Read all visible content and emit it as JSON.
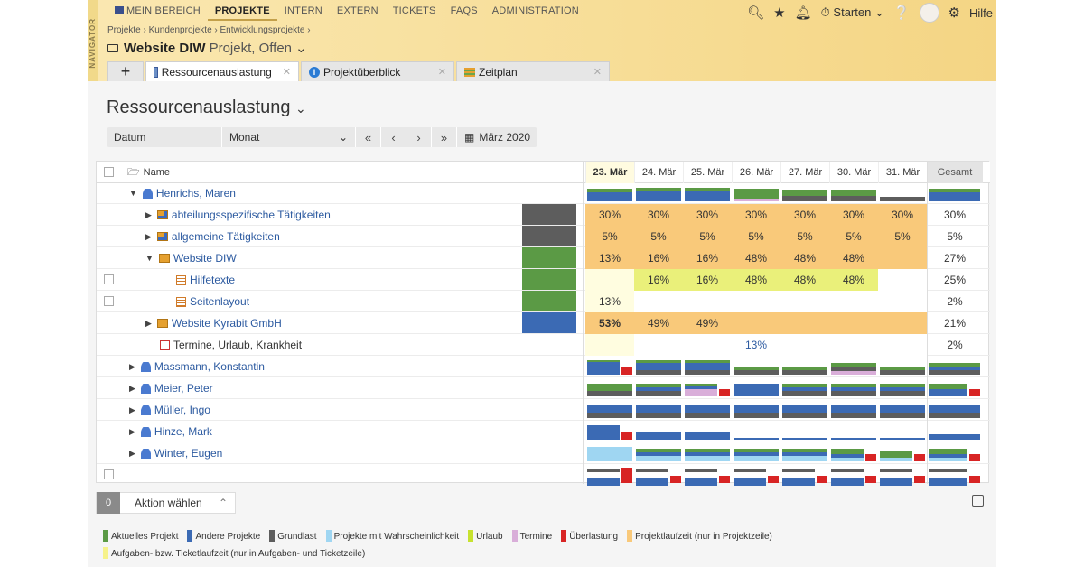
{
  "navigator": "NAVIGATOR",
  "topnav": [
    "MEIN BEREICH",
    "PROJEKTE",
    "INTERN",
    "EXTERN",
    "TICKETS",
    "FAQS",
    "ADMINISTRATION"
  ],
  "tools": {
    "start_label": "Starten",
    "help_label": "Hilfe"
  },
  "breadcrumb": "Projekte  ›  Kundenprojekte  ›  Entwicklungsprojekte  ›",
  "title": {
    "name": "Website DIW",
    "meta": "Projekt, Offen"
  },
  "tabs": [
    "Ressourcenauslastung",
    "Projektüberblick",
    "Zeitplan"
  ],
  "page_title": "Ressourcenauslastung",
  "toolbar": {
    "field1": "Datum",
    "field2": "Monat",
    "month": "März 2020"
  },
  "grid": {
    "name_header": "Name",
    "dates": [
      "23. Mär",
      "24. Mär",
      "25. Mär",
      "26. Mär",
      "27. Mär",
      "30. Mär",
      "31. Mär"
    ],
    "total_header": "Gesamt",
    "rows": [
      {
        "name": "Henrichs, Maren",
        "kind": "person"
      },
      {
        "name": "abteilungsspezifische Tätigkeiten",
        "kind": "dept",
        "values": [
          "30%",
          "30%",
          "30%",
          "30%",
          "30%",
          "30%",
          "30%"
        ],
        "total": "30%"
      },
      {
        "name": "allgemeine Tätigkeiten",
        "kind": "dept",
        "values": [
          "5%",
          "5%",
          "5%",
          "5%",
          "5%",
          "5%",
          "5%"
        ],
        "total": "5%"
      },
      {
        "name": "Website DIW",
        "kind": "project",
        "values": [
          "13%",
          "16%",
          "16%",
          "48%",
          "48%",
          "48%",
          ""
        ],
        "total": "27%"
      },
      {
        "name": "Hilfetexte",
        "kind": "task",
        "values": [
          "",
          "16%",
          "16%",
          "48%",
          "48%",
          "48%",
          ""
        ],
        "total": "25%"
      },
      {
        "name": "Seitenlayout",
        "kind": "task",
        "values": [
          "13%",
          "",
          "",
          "",
          "",
          "",
          ""
        ],
        "total": "2%"
      },
      {
        "name": "Website Kyrabit GmbH",
        "kind": "project",
        "values": [
          "53%",
          "49%",
          "49%",
          "",
          "",
          "",
          ""
        ],
        "total": "21%"
      },
      {
        "name": "Termine, Urlaub, Krankheit",
        "kind": "cal",
        "values": [
          "",
          "",
          "",
          "13%",
          "",
          "",
          ""
        ],
        "total": "2%"
      },
      {
        "name": "Massmann, Konstantin",
        "kind": "person"
      },
      {
        "name": "Meier, Peter",
        "kind": "person"
      },
      {
        "name": "Müller, Ingo",
        "kind": "person"
      },
      {
        "name": "Hinze, Mark",
        "kind": "person"
      },
      {
        "name": "Winter, Eugen",
        "kind": "person"
      }
    ]
  },
  "footer": {
    "count": "0",
    "action": "Aktion wählen"
  },
  "legend": [
    {
      "label": "Aktuelles Projekt",
      "color": "#5b9a45"
    },
    {
      "label": "Andere Projekte",
      "color": "#3b6ab4"
    },
    {
      "label": "Grundlast",
      "color": "#5d5d5d"
    },
    {
      "label": "Projekte mit Wahrscheinlichkeit",
      "color": "#9fd6f2"
    },
    {
      "label": "Urlaub",
      "color": "#c7e22f"
    },
    {
      "label": "Termine",
      "color": "#d9aed9"
    },
    {
      "label": "Überlastung",
      "color": "#d82424"
    },
    {
      "label": "Projektlaufzeit (nur in Projektzeile)",
      "color": "#f9c97a"
    },
    {
      "label": "Aufgaben- bzw. Ticketlaufzeit (nur in Aufgaben- und Ticketzeile)",
      "color": "#f6f28a"
    }
  ]
}
